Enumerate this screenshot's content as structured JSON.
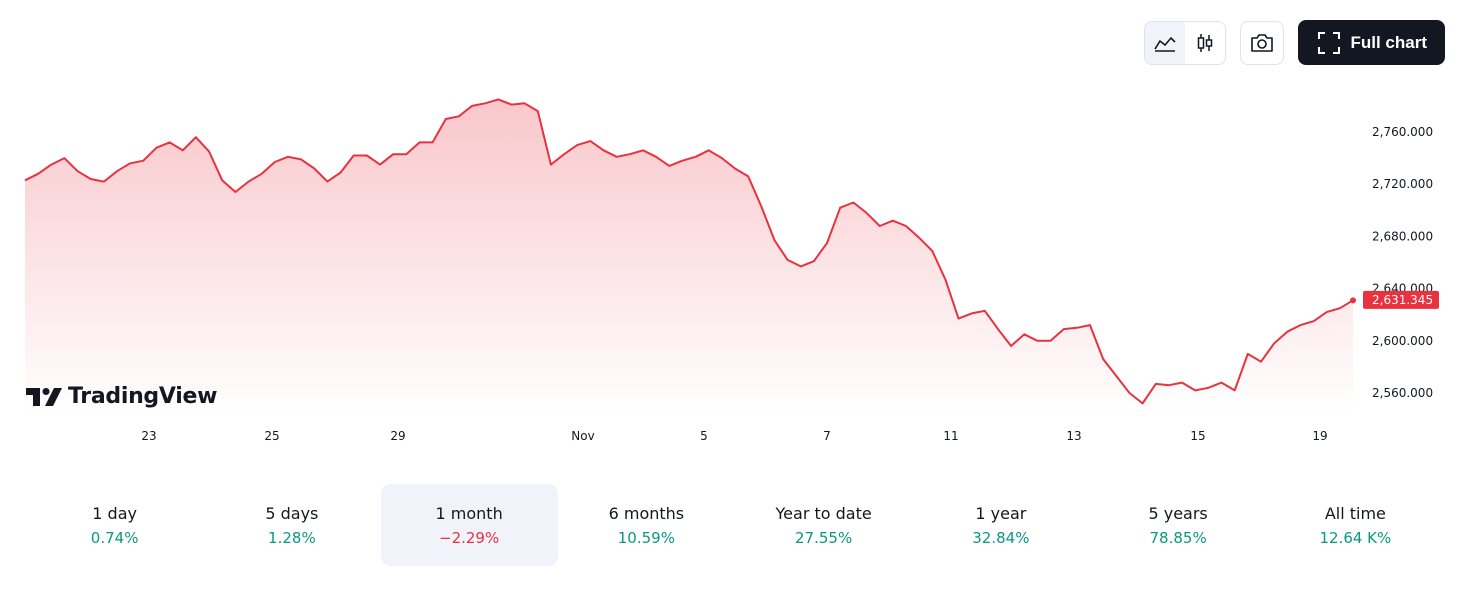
{
  "toolbar": {
    "full_chart_label": "Full chart"
  },
  "colors": {
    "line": "#e8323f",
    "fill_top": "#f9c7cb",
    "fill_bottom": "#ffffff",
    "positive": "#089981",
    "negative": "#e8323f",
    "price_tag_bg": "#e8323f"
  },
  "branding": {
    "logo_text": "TradingView"
  },
  "chart_data": {
    "type": "area",
    "x_ticks": [
      "23",
      "25",
      "29",
      "Nov",
      "5",
      "7",
      "11",
      "13",
      "15",
      "19"
    ],
    "y_ticks": [
      2560,
      2600,
      2640,
      2680,
      2720,
      2760
    ],
    "y_tick_labels": [
      "2,560.000",
      "2,600.000",
      "2,640.000",
      "2,680.000",
      "2,720.000",
      "2,760.000"
    ],
    "ylim": [
      2545,
      2790
    ],
    "last_value": 2631.345,
    "last_value_label": "2,631.345",
    "series": [
      {
        "values": [
          2723,
          2728,
          2735,
          2740,
          2730,
          2724,
          2722,
          2730,
          2736,
          2738,
          2748,
          2752,
          2746,
          2756,
          2745,
          2723,
          2714,
          2722,
          2728,
          2737,
          2741,
          2739,
          2732,
          2722,
          2729,
          2742,
          2742,
          2735,
          2743,
          2743,
          2752,
          2752,
          2770,
          2772,
          2780,
          2782,
          2785,
          2781,
          2782,
          2776,
          2735,
          2743,
          2750,
          2753,
          2746,
          2741,
          2743,
          2746,
          2741,
          2734,
          2738,
          2741,
          2746,
          2740,
          2732,
          2726,
          2703,
          2677,
          2662,
          2657,
          2661,
          2675,
          2702,
          2706,
          2698,
          2688,
          2692,
          2688,
          2679,
          2669,
          2647,
          2617,
          2621,
          2623,
          2609,
          2596,
          2605,
          2600,
          2600,
          2609,
          2610,
          2612,
          2586,
          2573,
          2560,
          2552,
          2567,
          2566,
          2568,
          2562,
          2564,
          2568,
          2562,
          2590,
          2584,
          2598,
          2607,
          2612,
          2615,
          2622,
          2625,
          2631
        ]
      }
    ]
  },
  "periods": [
    {
      "label": "1 day",
      "value": "0.74%",
      "trend": "positive"
    },
    {
      "label": "5 days",
      "value": "1.28%",
      "trend": "positive"
    },
    {
      "label": "1 month",
      "value": "−2.29%",
      "trend": "negative",
      "active": true
    },
    {
      "label": "6 months",
      "value": "10.59%",
      "trend": "positive"
    },
    {
      "label": "Year to date",
      "value": "27.55%",
      "trend": "positive"
    },
    {
      "label": "1 year",
      "value": "32.84%",
      "trend": "positive"
    },
    {
      "label": "5 years",
      "value": "78.85%",
      "trend": "positive"
    },
    {
      "label": "All time",
      "value": "12.64 K%",
      "trend": "positive"
    }
  ]
}
